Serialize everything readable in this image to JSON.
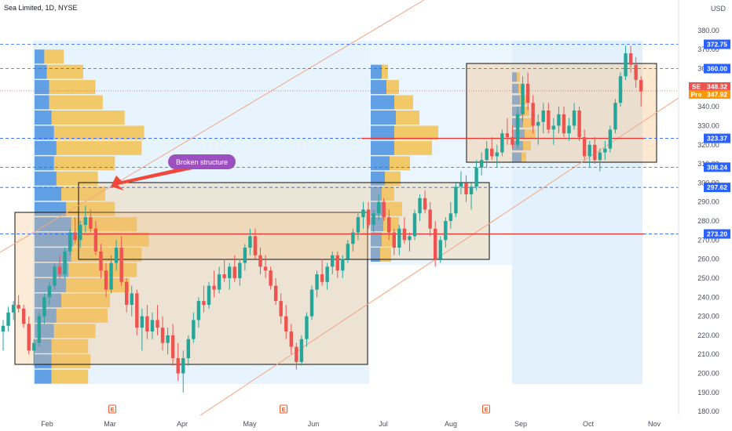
{
  "chart_data": {
    "type": "candlestick",
    "title": "Sea Limited, 1D, NYSE",
    "currency": "USD",
    "y_range": [
      178,
      389
    ],
    "y_ticks": [
      180,
      190,
      200,
      210,
      220,
      230,
      240,
      250,
      260,
      270,
      280,
      290,
      300,
      310,
      320,
      330,
      340,
      350,
      360,
      370,
      380
    ],
    "x_labels": [
      "Feb",
      "Mar",
      "Apr",
      "May",
      "Jun",
      "Jul",
      "Aug",
      "Sep",
      "Oct",
      "Nov"
    ],
    "up_color": "#26a69a",
    "down_color": "#ef5350",
    "price_levels": [
      {
        "value": 372.75,
        "label": "372.75",
        "color": "#2962ff"
      },
      {
        "value": 360.0,
        "label": "360.00",
        "color": "#2962ff"
      },
      {
        "value": 323.37,
        "label": "323.37",
        "color": "#2962ff"
      },
      {
        "value": 308.24,
        "label": "308.24",
        "color": "#2962ff"
      },
      {
        "value": 297.62,
        "label": "297.62",
        "color": "#2962ff"
      },
      {
        "value": 273.2,
        "label": "273.20",
        "color": "#2962ff"
      }
    ],
    "red_lines": [
      323.37,
      273.2
    ],
    "last_price": {
      "symbol": "SE",
      "value": "348.32",
      "color": "#ef5350"
    },
    "pre_price": {
      "symbol": "Pre",
      "value": "347.92",
      "color": "#ff9800"
    },
    "annotation": "Broken structure",
    "earnings_marker": "E",
    "candles": [
      {
        "d": 0,
        "o": 222,
        "h": 228,
        "l": 212,
        "c": 225
      },
      {
        "d": 1,
        "o": 225,
        "h": 235,
        "l": 222,
        "c": 232
      },
      {
        "d": 2,
        "o": 232,
        "h": 238,
        "l": 228,
        "c": 236
      },
      {
        "d": 3,
        "o": 236,
        "h": 241,
        "l": 232,
        "c": 234
      },
      {
        "d": 4,
        "o": 234,
        "h": 236,
        "l": 224,
        "c": 226
      },
      {
        "d": 5,
        "o": 226,
        "h": 230,
        "l": 210,
        "c": 212
      },
      {
        "d": 6,
        "o": 212,
        "h": 218,
        "l": 204,
        "c": 216
      },
      {
        "d": 7,
        "o": 216,
        "h": 232,
        "l": 214,
        "c": 230
      },
      {
        "d": 8,
        "o": 230,
        "h": 242,
        "l": 226,
        "c": 240
      },
      {
        "d": 9,
        "o": 240,
        "h": 248,
        "l": 236,
        "c": 246
      },
      {
        "d": 10,
        "o": 246,
        "h": 258,
        "l": 244,
        "c": 256
      },
      {
        "d": 11,
        "o": 256,
        "h": 262,
        "l": 250,
        "c": 252
      },
      {
        "d": 12,
        "o": 252,
        "h": 266,
        "l": 250,
        "c": 264
      },
      {
        "d": 13,
        "o": 264,
        "h": 276,
        "l": 262,
        "c": 274
      },
      {
        "d": 14,
        "o": 274,
        "h": 282,
        "l": 268,
        "c": 270
      },
      {
        "d": 15,
        "o": 270,
        "h": 280,
        "l": 266,
        "c": 278
      },
      {
        "d": 16,
        "o": 278,
        "h": 288,
        "l": 274,
        "c": 282
      },
      {
        "d": 17,
        "o": 282,
        "h": 286,
        "l": 274,
        "c": 276
      },
      {
        "d": 18,
        "o": 276,
        "h": 280,
        "l": 262,
        "c": 264
      },
      {
        "d": 19,
        "o": 264,
        "h": 268,
        "l": 250,
        "c": 254
      },
      {
        "d": 20,
        "o": 254,
        "h": 258,
        "l": 240,
        "c": 244
      },
      {
        "d": 21,
        "o": 244,
        "h": 262,
        "l": 242,
        "c": 258
      },
      {
        "d": 22,
        "o": 258,
        "h": 270,
        "l": 254,
        "c": 266
      },
      {
        "d": 23,
        "o": 266,
        "h": 272,
        "l": 246,
        "c": 248
      },
      {
        "d": 24,
        "o": 248,
        "h": 250,
        "l": 232,
        "c": 236
      },
      {
        "d": 25,
        "o": 236,
        "h": 246,
        "l": 230,
        "c": 242
      },
      {
        "d": 26,
        "o": 242,
        "h": 244,
        "l": 220,
        "c": 224
      },
      {
        "d": 27,
        "o": 224,
        "h": 234,
        "l": 212,
        "c": 230
      },
      {
        "d": 28,
        "o": 230,
        "h": 236,
        "l": 218,
        "c": 222
      },
      {
        "d": 29,
        "o": 222,
        "h": 232,
        "l": 218,
        "c": 228
      },
      {
        "d": 30,
        "o": 228,
        "h": 236,
        "l": 220,
        "c": 224
      },
      {
        "d": 31,
        "o": 224,
        "h": 230,
        "l": 212,
        "c": 216
      },
      {
        "d": 32,
        "o": 216,
        "h": 224,
        "l": 210,
        "c": 220
      },
      {
        "d": 33,
        "o": 220,
        "h": 226,
        "l": 204,
        "c": 208
      },
      {
        "d": 34,
        "o": 208,
        "h": 216,
        "l": 196,
        "c": 200
      },
      {
        "d": 35,
        "o": 200,
        "h": 212,
        "l": 190,
        "c": 208
      },
      {
        "d": 36,
        "o": 208,
        "h": 220,
        "l": 204,
        "c": 218
      },
      {
        "d": 37,
        "o": 218,
        "h": 232,
        "l": 216,
        "c": 228
      },
      {
        "d": 38,
        "o": 228,
        "h": 240,
        "l": 224,
        "c": 238
      },
      {
        "d": 39,
        "o": 238,
        "h": 246,
        "l": 232,
        "c": 236
      },
      {
        "d": 40,
        "o": 236,
        "h": 248,
        "l": 234,
        "c": 246
      },
      {
        "d": 41,
        "o": 246,
        "h": 254,
        "l": 240,
        "c": 244
      },
      {
        "d": 42,
        "o": 244,
        "h": 256,
        "l": 242,
        "c": 252
      },
      {
        "d": 43,
        "o": 252,
        "h": 260,
        "l": 248,
        "c": 250
      },
      {
        "d": 44,
        "o": 250,
        "h": 258,
        "l": 244,
        "c": 256
      },
      {
        "d": 45,
        "o": 256,
        "h": 262,
        "l": 248,
        "c": 250
      },
      {
        "d": 46,
        "o": 250,
        "h": 260,
        "l": 246,
        "c": 258
      },
      {
        "d": 47,
        "o": 258,
        "h": 268,
        "l": 254,
        "c": 266
      },
      {
        "d": 48,
        "o": 266,
        "h": 276,
        "l": 262,
        "c": 272
      },
      {
        "d": 49,
        "o": 272,
        "h": 276,
        "l": 260,
        "c": 262
      },
      {
        "d": 50,
        "o": 262,
        "h": 266,
        "l": 252,
        "c": 256
      },
      {
        "d": 51,
        "o": 256,
        "h": 262,
        "l": 250,
        "c": 254
      },
      {
        "d": 52,
        "o": 254,
        "h": 256,
        "l": 244,
        "c": 246
      },
      {
        "d": 53,
        "o": 246,
        "h": 250,
        "l": 236,
        "c": 238
      },
      {
        "d": 54,
        "o": 238,
        "h": 242,
        "l": 226,
        "c": 230
      },
      {
        "d": 55,
        "o": 230,
        "h": 236,
        "l": 218,
        "c": 222
      },
      {
        "d": 56,
        "o": 222,
        "h": 226,
        "l": 210,
        "c": 214
      },
      {
        "d": 57,
        "o": 214,
        "h": 216,
        "l": 202,
        "c": 206
      },
      {
        "d": 58,
        "o": 206,
        "h": 220,
        "l": 204,
        "c": 218
      },
      {
        "d": 59,
        "o": 218,
        "h": 232,
        "l": 214,
        "c": 230
      },
      {
        "d": 60,
        "o": 230,
        "h": 246,
        "l": 228,
        "c": 244
      },
      {
        "d": 61,
        "o": 244,
        "h": 254,
        "l": 240,
        "c": 252
      },
      {
        "d": 62,
        "o": 252,
        "h": 260,
        "l": 246,
        "c": 248
      },
      {
        "d": 63,
        "o": 248,
        "h": 258,
        "l": 244,
        "c": 256
      },
      {
        "d": 64,
        "o": 256,
        "h": 264,
        "l": 252,
        "c": 262
      },
      {
        "d": 65,
        "o": 262,
        "h": 264,
        "l": 250,
        "c": 254
      },
      {
        "d": 66,
        "o": 254,
        "h": 262,
        "l": 250,
        "c": 260
      },
      {
        "d": 67,
        "o": 260,
        "h": 270,
        "l": 258,
        "c": 268
      },
      {
        "d": 68,
        "o": 268,
        "h": 276,
        "l": 264,
        "c": 274
      },
      {
        "d": 69,
        "o": 274,
        "h": 284,
        "l": 270,
        "c": 282
      },
      {
        "d": 70,
        "o": 282,
        "h": 290,
        "l": 276,
        "c": 286
      },
      {
        "d": 71,
        "o": 286,
        "h": 290,
        "l": 276,
        "c": 278
      },
      {
        "d": 72,
        "o": 278,
        "h": 286,
        "l": 274,
        "c": 284
      },
      {
        "d": 73,
        "o": 284,
        "h": 294,
        "l": 280,
        "c": 290
      },
      {
        "d": 74,
        "o": 290,
        "h": 292,
        "l": 280,
        "c": 282
      },
      {
        "d": 75,
        "o": 282,
        "h": 286,
        "l": 270,
        "c": 274
      },
      {
        "d": 76,
        "o": 274,
        "h": 276,
        "l": 262,
        "c": 266
      },
      {
        "d": 77,
        "o": 266,
        "h": 278,
        "l": 262,
        "c": 276
      },
      {
        "d": 78,
        "o": 276,
        "h": 282,
        "l": 268,
        "c": 270
      },
      {
        "d": 79,
        "o": 270,
        "h": 274,
        "l": 264,
        "c": 272
      },
      {
        "d": 80,
        "o": 272,
        "h": 286,
        "l": 270,
        "c": 284
      },
      {
        "d": 81,
        "o": 284,
        "h": 294,
        "l": 280,
        "c": 292
      },
      {
        "d": 82,
        "o": 292,
        "h": 296,
        "l": 284,
        "c": 286
      },
      {
        "d": 83,
        "o": 286,
        "h": 290,
        "l": 272,
        "c": 276
      },
      {
        "d": 84,
        "o": 276,
        "h": 280,
        "l": 256,
        "c": 260
      },
      {
        "d": 85,
        "o": 260,
        "h": 272,
        "l": 258,
        "c": 270
      },
      {
        "d": 86,
        "o": 270,
        "h": 282,
        "l": 266,
        "c": 280
      },
      {
        "d": 87,
        "o": 280,
        "h": 290,
        "l": 276,
        "c": 284
      },
      {
        "d": 88,
        "o": 284,
        "h": 300,
        "l": 282,
        "c": 298
      },
      {
        "d": 89,
        "o": 298,
        "h": 306,
        "l": 294,
        "c": 300
      },
      {
        "d": 90,
        "o": 300,
        "h": 304,
        "l": 290,
        "c": 294
      },
      {
        "d": 91,
        "o": 294,
        "h": 300,
        "l": 286,
        "c": 298
      },
      {
        "d": 92,
        "o": 298,
        "h": 312,
        "l": 296,
        "c": 308
      },
      {
        "d": 93,
        "o": 308,
        "h": 316,
        "l": 304,
        "c": 312
      },
      {
        "d": 94,
        "o": 312,
        "h": 322,
        "l": 308,
        "c": 318
      },
      {
        "d": 95,
        "o": 318,
        "h": 324,
        "l": 312,
        "c": 314
      },
      {
        "d": 96,
        "o": 314,
        "h": 320,
        "l": 308,
        "c": 316
      },
      {
        "d": 97,
        "o": 316,
        "h": 328,
        "l": 314,
        "c": 326
      },
      {
        "d": 98,
        "o": 326,
        "h": 334,
        "l": 320,
        "c": 324
      },
      {
        "d": 99,
        "o": 324,
        "h": 330,
        "l": 318,
        "c": 320
      },
      {
        "d": 100,
        "o": 320,
        "h": 340,
        "l": 318,
        "c": 336
      },
      {
        "d": 101,
        "o": 336,
        "h": 356,
        "l": 332,
        "c": 352
      },
      {
        "d": 102,
        "o": 352,
        "h": 358,
        "l": 338,
        "c": 342
      },
      {
        "d": 103,
        "o": 342,
        "h": 346,
        "l": 326,
        "c": 330
      },
      {
        "d": 104,
        "o": 330,
        "h": 336,
        "l": 320,
        "c": 332
      },
      {
        "d": 105,
        "o": 332,
        "h": 342,
        "l": 326,
        "c": 338
      },
      {
        "d": 106,
        "o": 338,
        "h": 342,
        "l": 326,
        "c": 328
      },
      {
        "d": 107,
        "o": 328,
        "h": 334,
        "l": 320,
        "c": 330
      },
      {
        "d": 108,
        "o": 330,
        "h": 340,
        "l": 326,
        "c": 336
      },
      {
        "d": 109,
        "o": 336,
        "h": 340,
        "l": 324,
        "c": 326
      },
      {
        "d": 110,
        "o": 326,
        "h": 334,
        "l": 322,
        "c": 330
      },
      {
        "d": 111,
        "o": 330,
        "h": 342,
        "l": 328,
        "c": 338
      },
      {
        "d": 112,
        "o": 338,
        "h": 340,
        "l": 322,
        "c": 324
      },
      {
        "d": 113,
        "o": 324,
        "h": 328,
        "l": 312,
        "c": 314
      },
      {
        "d": 114,
        "o": 314,
        "h": 322,
        "l": 308,
        "c": 320
      },
      {
        "d": 115,
        "o": 320,
        "h": 324,
        "l": 310,
        "c": 312
      },
      {
        "d": 116,
        "o": 312,
        "h": 318,
        "l": 306,
        "c": 316
      },
      {
        "d": 117,
        "o": 316,
        "h": 322,
        "l": 312,
        "c": 318
      },
      {
        "d": 118,
        "o": 318,
        "h": 330,
        "l": 316,
        "c": 328
      },
      {
        "d": 119,
        "o": 328,
        "h": 344,
        "l": 326,
        "c": 342
      },
      {
        "d": 120,
        "o": 342,
        "h": 358,
        "l": 340,
        "c": 356
      },
      {
        "d": 121,
        "o": 356,
        "h": 372,
        "l": 354,
        "c": 368
      },
      {
        "d": 122,
        "o": 368,
        "h": 372,
        "l": 358,
        "c": 362
      },
      {
        "d": 123,
        "o": 362,
        "h": 366,
        "l": 350,
        "c": 354
      },
      {
        "d": 124,
        "o": 354,
        "h": 356,
        "l": 340,
        "c": 348
      }
    ]
  },
  "volume_profile_left": [
    {
      "p": 198,
      "b": 14,
      "y": 30
    },
    {
      "p": 206,
      "b": 14,
      "y": 32
    },
    {
      "p": 214,
      "b": 14,
      "y": 30
    },
    {
      "p": 222,
      "b": 16,
      "y": 34
    },
    {
      "p": 230,
      "b": 18,
      "y": 42
    },
    {
      "p": 238,
      "b": 22,
      "y": 40
    },
    {
      "p": 246,
      "b": 26,
      "y": 52
    },
    {
      "p": 254,
      "b": 28,
      "y": 56
    },
    {
      "p": 262,
      "b": 30,
      "y": 58
    },
    {
      "p": 270,
      "b": 32,
      "y": 62
    },
    {
      "p": 278,
      "b": 30,
      "y": 54
    },
    {
      "p": 286,
      "b": 26,
      "y": 40
    },
    {
      "p": 294,
      "b": 22,
      "y": 36
    },
    {
      "p": 302,
      "b": 18,
      "y": 34
    },
    {
      "p": 310,
      "b": 16,
      "y": 50
    },
    {
      "p": 318,
      "b": 18,
      "y": 70
    },
    {
      "p": 326,
      "b": 16,
      "y": 74
    },
    {
      "p": 334,
      "b": 14,
      "y": 60
    },
    {
      "p": 342,
      "b": 12,
      "y": 44
    },
    {
      "p": 350,
      "b": 12,
      "y": 38
    },
    {
      "p": 358,
      "b": 10,
      "y": 30
    },
    {
      "p": 366,
      "b": 8,
      "y": 16
    }
  ],
  "volume_profile_mid": [
    {
      "p": 262,
      "b": 12,
      "y": 14
    },
    {
      "p": 270,
      "b": 14,
      "y": 18
    },
    {
      "p": 278,
      "b": 16,
      "y": 20
    },
    {
      "p": 286,
      "b": 18,
      "y": 22
    },
    {
      "p": 294,
      "b": 14,
      "y": 16
    },
    {
      "p": 302,
      "b": 18,
      "y": 20
    },
    {
      "p": 310,
      "b": 24,
      "y": 26
    },
    {
      "p": 318,
      "b": 30,
      "y": 48
    },
    {
      "p": 326,
      "b": 30,
      "y": 56
    },
    {
      "p": 334,
      "b": 32,
      "y": 30
    },
    {
      "p": 342,
      "b": 30,
      "y": 24
    },
    {
      "p": 350,
      "b": 20,
      "y": 16
    },
    {
      "p": 358,
      "b": 14,
      "y": 8
    }
  ],
  "volume_profile_right": [
    {
      "p": 312,
      "b": 12,
      "y": 6
    },
    {
      "p": 318,
      "b": 14,
      "y": 10
    },
    {
      "p": 324,
      "b": 16,
      "y": 14
    },
    {
      "p": 330,
      "b": 14,
      "y": 12
    },
    {
      "p": 336,
      "b": 12,
      "y": 10
    },
    {
      "p": 342,
      "b": 10,
      "y": 8
    },
    {
      "p": 348,
      "b": 8,
      "y": 6
    },
    {
      "p": 354,
      "b": 6,
      "y": 4
    }
  ]
}
